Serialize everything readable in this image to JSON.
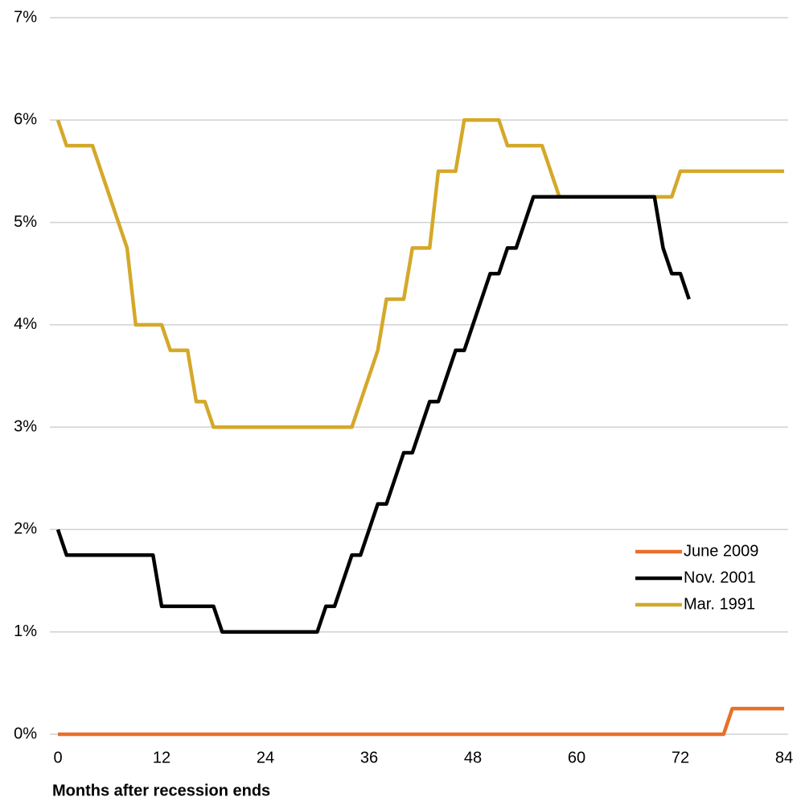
{
  "chart_data": {
    "type": "line",
    "xlabel": "Months after recession ends",
    "x": [
      0,
      1,
      2,
      3,
      4,
      5,
      6,
      7,
      8,
      9,
      10,
      11,
      12,
      13,
      14,
      15,
      16,
      17,
      18,
      19,
      20,
      21,
      22,
      23,
      24,
      25,
      26,
      27,
      28,
      29,
      30,
      31,
      32,
      33,
      34,
      35,
      36,
      37,
      38,
      39,
      40,
      41,
      42,
      43,
      44,
      45,
      46,
      47,
      48,
      49,
      50,
      51,
      52,
      53,
      54,
      55,
      56,
      57,
      58,
      59,
      60,
      61,
      62,
      63,
      64,
      65,
      66,
      67,
      68,
      69,
      70,
      71,
      72,
      73,
      74,
      75,
      76,
      77,
      78,
      79,
      80,
      81,
      82,
      83,
      84
    ],
    "series": [
      {
        "name": "June 2009",
        "color": "#e8702a",
        "values": [
          0,
          0,
          0,
          0,
          0,
          0,
          0,
          0,
          0,
          0,
          0,
          0,
          0,
          0,
          0,
          0,
          0,
          0,
          0,
          0,
          0,
          0,
          0,
          0,
          0,
          0,
          0,
          0,
          0,
          0,
          0,
          0,
          0,
          0,
          0,
          0,
          0,
          0,
          0,
          0,
          0,
          0,
          0,
          0,
          0,
          0,
          0,
          0,
          0,
          0,
          0,
          0,
          0,
          0,
          0,
          0,
          0,
          0,
          0,
          0,
          0,
          0,
          0,
          0,
          0,
          0,
          0,
          0,
          0,
          0,
          0,
          0,
          0,
          0,
          0,
          0,
          0,
          0,
          0.25,
          0.25,
          0.25,
          0.25,
          0.25,
          0.25,
          0.25
        ]
      },
      {
        "name": "Nov. 2001",
        "color": "#000000",
        "values": [
          2,
          1.75,
          1.75,
          1.75,
          1.75,
          1.75,
          1.75,
          1.75,
          1.75,
          1.75,
          1.75,
          1.75,
          1.25,
          1.25,
          1.25,
          1.25,
          1.25,
          1.25,
          1.25,
          1,
          1,
          1,
          1,
          1,
          1,
          1,
          1,
          1,
          1,
          1,
          1,
          1.25,
          1.25,
          1.5,
          1.75,
          1.75,
          2,
          2.25,
          2.25,
          2.5,
          2.75,
          2.75,
          3,
          3.25,
          3.25,
          3.5,
          3.75,
          3.75,
          4,
          4.25,
          4.5,
          4.5,
          4.75,
          4.75,
          5,
          5.25,
          5.25,
          5.25,
          5.25,
          5.25,
          5.25,
          5.25,
          5.25,
          5.25,
          5.25,
          5.25,
          5.25,
          5.25,
          5.25,
          5.25,
          4.75,
          4.5,
          4.5,
          4.25,
          null,
          null,
          null,
          null,
          null,
          null,
          null,
          null,
          null,
          null,
          null
        ]
      },
      {
        "name": "Mar. 1991",
        "color": "#d4a82a",
        "values": [
          6,
          5.75,
          5.75,
          5.75,
          5.75,
          5.5,
          5.25,
          5,
          4.75,
          4,
          4,
          4,
          4,
          3.75,
          3.75,
          3.75,
          3.25,
          3.25,
          3,
          3,
          3,
          3,
          3,
          3,
          3,
          3,
          3,
          3,
          3,
          3,
          3,
          3,
          3,
          3,
          3,
          3.25,
          3.5,
          3.75,
          4.25,
          4.25,
          4.25,
          4.75,
          4.75,
          4.75,
          5.5,
          5.5,
          5.5,
          6,
          6,
          6,
          6,
          6,
          5.75,
          5.75,
          5.75,
          5.75,
          5.75,
          5.5,
          5.25,
          5.25,
          5.25,
          5.25,
          5.25,
          5.25,
          5.25,
          5.25,
          5.25,
          5.25,
          5.25,
          5.25,
          5.25,
          5.25,
          5.5,
          5.5,
          5.5,
          5.5,
          5.5,
          5.5,
          5.5,
          5.5,
          5.5,
          5.5,
          5.5,
          5.5,
          5.5
        ]
      }
    ],
    "xlim": [
      0,
      84
    ],
    "xticks": [
      0,
      12,
      24,
      36,
      48,
      60,
      72,
      84
    ],
    "ylim": [
      0,
      7
    ],
    "yticks": [
      {
        "value": 0,
        "label": "0%"
      },
      {
        "value": 1,
        "label": "1%"
      },
      {
        "value": 2,
        "label": "2%"
      },
      {
        "value": 3,
        "label": "3%"
      },
      {
        "value": 4,
        "label": "4%"
      },
      {
        "value": 5,
        "label": "5%"
      },
      {
        "value": 6,
        "label": "6%"
      },
      {
        "value": 7,
        "label": "7%"
      }
    ],
    "grid": true,
    "legend": "lower right"
  }
}
